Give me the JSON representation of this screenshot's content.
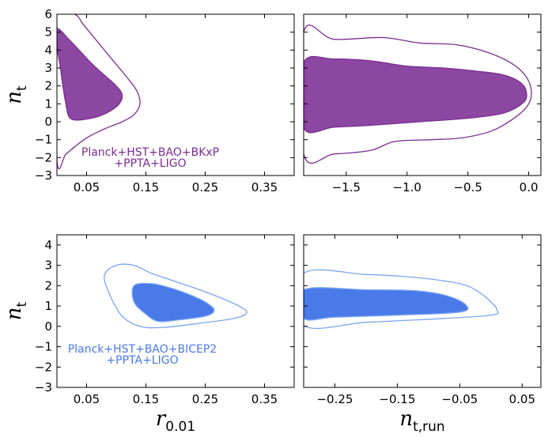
{
  "chart_data": {
    "type": "contour",
    "panels": [
      {
        "name": "nt-vs-r-bkxp",
        "x_param": "r_0.01",
        "y_param": "n_t",
        "xlim": [
          0.0,
          0.4
        ],
        "ylim": [
          -3,
          6
        ],
        "xticks": [
          0.05,
          0.15,
          0.25,
          0.35
        ],
        "xtick_labels": [
          "0.05",
          "0.15",
          "0.25",
          "0.35"
        ],
        "yticks": [
          -3,
          -2,
          -1,
          0,
          1,
          2,
          3,
          4,
          5,
          6
        ],
        "ytick_labels": [
          "−3",
          "−2",
          "−1",
          "0",
          "1",
          "2",
          "3",
          "4",
          "5",
          "6"
        ],
        "show_xtick_labels": true,
        "show_ytick_labels": true,
        "ylabel": "n",
        "ylabel_sub": "t",
        "color": "#7b2d8e",
        "fill_color": "#8c47a3",
        "annotation": [
          "Planck+HST+BAO+BKxP",
          "+PPTA+LIGO"
        ],
        "contour_68": [
          [
            0.0,
            5.2
          ],
          [
            0.02,
            4.6
          ],
          [
            0.04,
            3.9
          ],
          [
            0.06,
            3.2
          ],
          [
            0.08,
            2.6
          ],
          [
            0.1,
            2.0
          ],
          [
            0.11,
            1.5
          ],
          [
            0.105,
            1.0
          ],
          [
            0.09,
            0.6
          ],
          [
            0.07,
            0.3
          ],
          [
            0.05,
            0.15
          ],
          [
            0.03,
            0.1
          ],
          [
            0.02,
            0.3
          ],
          [
            0.015,
            1.0
          ],
          [
            0.01,
            2.0
          ],
          [
            0.005,
            3.2
          ],
          [
            0.0,
            4.2
          ]
        ],
        "contour_95": [
          [
            0.0,
            6.0
          ],
          [
            0.03,
            6.0
          ],
          [
            0.045,
            5.4
          ],
          [
            0.06,
            4.8
          ],
          [
            0.08,
            4.0
          ],
          [
            0.1,
            3.2
          ],
          [
            0.12,
            2.4
          ],
          [
            0.135,
            1.7
          ],
          [
            0.14,
            1.0
          ],
          [
            0.13,
            0.4
          ],
          [
            0.11,
            0.0
          ],
          [
            0.08,
            -0.4
          ],
          [
            0.05,
            -0.9
          ],
          [
            0.03,
            -1.4
          ],
          [
            0.015,
            -1.8
          ],
          [
            0.0,
            -2.1
          ]
        ]
      },
      {
        "name": "nt-vs-ntrun-bkxp",
        "x_param": "n_t,run",
        "y_param": "n_t",
        "xlim": [
          -1.85,
          0.1
        ],
        "ylim": [
          -3,
          6
        ],
        "xticks": [
          -1.5,
          -1.0,
          -0.5,
          0.0
        ],
        "xtick_labels": [
          "−1.5",
          "−1.0",
          "−0.5",
          "0.0"
        ],
        "yticks": [
          -3,
          -2,
          -1,
          0,
          1,
          2,
          3,
          4,
          5,
          6
        ],
        "show_xtick_labels": true,
        "show_ytick_labels": false,
        "color": "#7b2d8e",
        "fill_color": "#8c47a3",
        "contour_68": [
          [
            -1.85,
            3.3
          ],
          [
            -1.6,
            3.5
          ],
          [
            -1.3,
            3.4
          ],
          [
            -1.0,
            3.1
          ],
          [
            -0.7,
            3.0
          ],
          [
            -0.4,
            2.8
          ],
          [
            -0.2,
            2.6
          ],
          [
            -0.07,
            2.2
          ],
          [
            -0.02,
            1.7
          ],
          [
            -0.04,
            1.1
          ],
          [
            -0.2,
            0.5
          ],
          [
            -0.5,
            0.2
          ],
          [
            -0.9,
            0.0
          ],
          [
            -1.3,
            -0.2
          ],
          [
            -1.6,
            -0.3
          ],
          [
            -1.85,
            -0.35
          ]
        ],
        "contour_95": [
          [
            -1.85,
            5.0
          ],
          [
            -1.6,
            4.6
          ],
          [
            -1.2,
            4.7
          ],
          [
            -0.9,
            4.4
          ],
          [
            -0.6,
            4.3
          ],
          [
            -0.35,
            3.9
          ],
          [
            -0.15,
            3.3
          ],
          [
            -0.03,
            2.6
          ],
          [
            0.02,
            1.8
          ],
          [
            0.0,
            1.0
          ],
          [
            -0.1,
            0.3
          ],
          [
            -0.3,
            -0.5
          ],
          [
            -0.55,
            -0.9
          ],
          [
            -0.8,
            -1.0
          ],
          [
            -1.1,
            -1.1
          ],
          [
            -1.3,
            -1.6
          ],
          [
            -1.6,
            -1.8
          ],
          [
            -1.85,
            -1.8
          ]
        ]
      },
      {
        "name": "nt-vs-r-bicep2",
        "x_param": "r_0.01",
        "y_param": "n_t",
        "xlim": [
          0.0,
          0.4
        ],
        "ylim": [
          -3,
          4.5
        ],
        "xticks": [
          0.05,
          0.15,
          0.25,
          0.35
        ],
        "xtick_labels": [
          "0.05",
          "0.15",
          "0.25",
          "0.35"
        ],
        "yticks": [
          -3,
          -2,
          -1,
          0,
          1,
          2,
          3,
          4
        ],
        "ytick_labels": [
          "−3",
          "−2",
          "−1",
          "0",
          "1",
          "2",
          "3",
          "4"
        ],
        "show_xtick_labels": true,
        "show_ytick_labels": true,
        "ylabel": "n",
        "ylabel_sub": "t",
        "xlabel": "r",
        "xlabel_sub": "0.01",
        "color": "#7aa6f0",
        "fill_color": "#4a7ae8",
        "annotation": [
          "Planck+HST+BAO+BICEP2",
          "+PPTA+LIGO"
        ],
        "contour_68": [
          [
            0.13,
            2.0
          ],
          [
            0.16,
            2.1
          ],
          [
            0.19,
            1.9
          ],
          [
            0.22,
            1.6
          ],
          [
            0.25,
            1.2
          ],
          [
            0.265,
            0.8
          ],
          [
            0.25,
            0.5
          ],
          [
            0.2,
            0.3
          ],
          [
            0.17,
            0.25
          ],
          [
            0.15,
            0.6
          ],
          [
            0.13,
            1.2
          ]
        ],
        "contour_95": [
          [
            0.08,
            2.5
          ],
          [
            0.1,
            3.0
          ],
          [
            0.13,
            3.0
          ],
          [
            0.16,
            2.6
          ],
          [
            0.2,
            2.2
          ],
          [
            0.25,
            1.7
          ],
          [
            0.3,
            1.1
          ],
          [
            0.32,
            0.7
          ],
          [
            0.3,
            0.4
          ],
          [
            0.24,
            0.15
          ],
          [
            0.18,
            -0.05
          ],
          [
            0.14,
            0.0
          ],
          [
            0.11,
            0.5
          ],
          [
            0.09,
            1.5
          ]
        ]
      },
      {
        "name": "nt-vs-ntrun-bicep2",
        "x_param": "n_t,run",
        "y_param": "n_t",
        "xlim": [
          -0.3,
          0.08
        ],
        "ylim": [
          -3,
          4.5
        ],
        "xticks": [
          -0.25,
          -0.15,
          -0.05,
          0.05
        ],
        "xtick_labels": [
          "−0.25",
          "−0.15",
          "−0.05",
          "0.05"
        ],
        "yticks": [
          -3,
          -2,
          -1,
          0,
          1,
          2,
          3,
          4
        ],
        "show_xtick_labels": true,
        "show_ytick_labels": false,
        "xlabel": "n",
        "xlabel_sub": "t,run",
        "color": "#7aa6f0",
        "fill_color": "#4a7ae8",
        "contour_68": [
          [
            -0.3,
            1.8
          ],
          [
            -0.2,
            1.8
          ],
          [
            -0.12,
            1.75
          ],
          [
            -0.07,
            1.5
          ],
          [
            -0.04,
            1.05
          ],
          [
            -0.05,
            0.7
          ],
          [
            -0.15,
            0.55
          ],
          [
            -0.25,
            0.45
          ],
          [
            -0.3,
            0.4
          ]
        ],
        "contour_95": [
          [
            -0.3,
            2.6
          ],
          [
            -0.2,
            2.55
          ],
          [
            -0.12,
            2.4
          ],
          [
            -0.05,
            2.1
          ],
          [
            -0.02,
            1.7
          ],
          [
            0.0,
            1.2
          ],
          [
            0.01,
            0.8
          ],
          [
            0.0,
            0.55
          ],
          [
            -0.1,
            0.35
          ],
          [
            -0.2,
            0.2
          ],
          [
            -0.3,
            0.05
          ]
        ]
      }
    ]
  }
}
